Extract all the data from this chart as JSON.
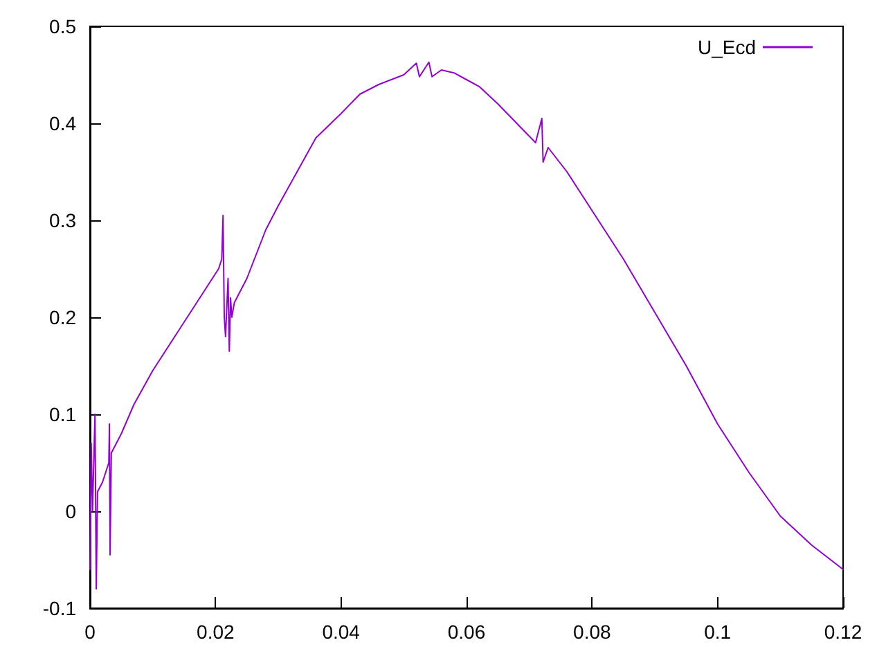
{
  "chart_data": {
    "type": "line",
    "legend": "top right",
    "grid": false,
    "marker": "none",
    "line_style": "solid",
    "xlim": [
      0,
      0.12
    ],
    "xticks": [
      0,
      0.02,
      0.04,
      0.06,
      0.08,
      0.1,
      0.12
    ],
    "ylim": [
      -0.1,
      0.5
    ],
    "yticks": [
      -0.1,
      0,
      0.1,
      0.2,
      0.3,
      0.4,
      0.5
    ],
    "series": [
      {
        "name": "U_Ecd",
        "color": "#9400d3",
        "x": [
          0,
          0.0002,
          0.0004,
          0.0008,
          0.001,
          0.0012,
          0.002,
          0.003,
          0.0031,
          0.0032,
          0.0034,
          0.005,
          0.007,
          0.01,
          0.013,
          0.016,
          0.019,
          0.0205,
          0.021,
          0.0212,
          0.0214,
          0.0216,
          0.022,
          0.0222,
          0.0224,
          0.0226,
          0.023,
          0.025,
          0.028,
          0.03,
          0.033,
          0.036,
          0.04,
          0.043,
          0.046,
          0.05,
          0.052,
          0.0525,
          0.054,
          0.0545,
          0.056,
          0.058,
          0.06,
          0.062,
          0.065,
          0.068,
          0.071,
          0.072,
          0.0722,
          0.073,
          0.076,
          0.08,
          0.085,
          0.09,
          0.095,
          0.1,
          0.105,
          0.11,
          0.115,
          0.12
        ],
        "values": [
          -0.06,
          0.07,
          0.0,
          0.1,
          -0.08,
          0.02,
          0.03,
          0.05,
          0.09,
          -0.045,
          0.06,
          0.08,
          0.11,
          0.145,
          0.175,
          0.205,
          0.235,
          0.25,
          0.26,
          0.305,
          0.2,
          0.18,
          0.24,
          0.165,
          0.22,
          0.2,
          0.215,
          0.24,
          0.29,
          0.315,
          0.35,
          0.385,
          0.41,
          0.43,
          0.44,
          0.45,
          0.462,
          0.448,
          0.463,
          0.448,
          0.455,
          0.452,
          0.445,
          0.438,
          0.42,
          0.4,
          0.38,
          0.405,
          0.36,
          0.375,
          0.35,
          0.31,
          0.26,
          0.205,
          0.15,
          0.09,
          0.04,
          -0.005,
          -0.035,
          -0.06
        ]
      }
    ]
  }
}
